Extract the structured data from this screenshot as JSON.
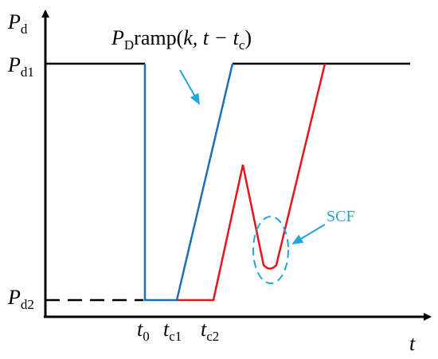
{
  "y_axis": {
    "symbol": "P",
    "subscript": "d"
  },
  "x_axis": {
    "symbol": "t"
  },
  "levels": [
    {
      "symbol": "P",
      "subscript": "d1"
    },
    {
      "symbol": "P",
      "subscript": "d2"
    }
  ],
  "times": [
    {
      "symbol": "t",
      "subscript": "0"
    },
    {
      "symbol": "t",
      "subscript": "c1"
    },
    {
      "symbol": "t",
      "subscript": "c2"
    }
  ],
  "ramp_label": {
    "symbol": "P",
    "subscript": "D",
    "function": "ramp(",
    "args": "k, t − t",
    "arg_subscript": "c",
    "close": ")"
  },
  "scf_label": "SCF"
}
